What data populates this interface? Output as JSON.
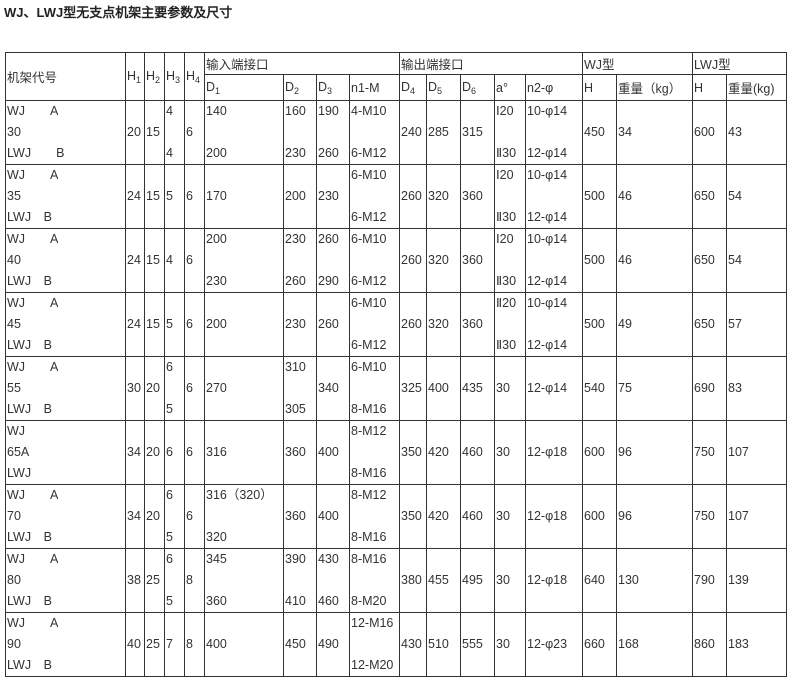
{
  "title": "WJ、LWJ型无支点机架主要参数及尺寸",
  "header": {
    "frame_code": "机架代号",
    "H1": "H",
    "H2": "H",
    "H3": "H",
    "H4": "H",
    "h_subs": [
      "1",
      "2",
      "3",
      "4"
    ],
    "input_group": "输入端接口",
    "output_group": "输出端接口",
    "wj_group": "WJ型",
    "lwj_group": "LWJ型",
    "sub_cols": [
      "D1",
      "D2",
      "D3",
      "n1-M",
      "D4",
      "D5",
      "D6",
      "a°",
      "n2-φ",
      "H",
      "重量（kg）",
      "H",
      "重量(kg)"
    ]
  },
  "rows": [
    [
      [
        "WJ　　A",
        "30",
        "LWJ　　B"
      ],
      [
        "",
        "20",
        ""
      ],
      [
        "",
        "15",
        ""
      ],
      [
        "4",
        "",
        "4"
      ],
      [
        "",
        "6",
        ""
      ],
      [
        "140",
        "",
        "200"
      ],
      [
        "160",
        "",
        "230"
      ],
      [
        "190",
        "",
        "260"
      ],
      [
        "4-M10",
        "",
        "6-M12"
      ],
      [
        "",
        "240",
        ""
      ],
      [
        "",
        "285",
        ""
      ],
      [
        "",
        "315",
        ""
      ],
      [
        "Ⅰ20",
        "",
        "Ⅱ30"
      ],
      [
        "10-φ14",
        "",
        "12-φ14"
      ],
      [
        "",
        "450",
        ""
      ],
      [
        "",
        "34",
        ""
      ],
      [
        "",
        "600",
        ""
      ],
      [
        "",
        "43",
        ""
      ]
    ],
    [
      [
        "WJ　　A",
        "35",
        "LWJ　B"
      ],
      [
        "",
        "24",
        ""
      ],
      [
        "",
        "15",
        ""
      ],
      [
        "",
        "5",
        ""
      ],
      [
        "",
        "6",
        ""
      ],
      [
        "",
        "170",
        ""
      ],
      [
        "",
        "200",
        ""
      ],
      [
        "",
        "230",
        ""
      ],
      [
        "6-M10",
        "",
        "6-M12"
      ],
      [
        "",
        "260",
        ""
      ],
      [
        "",
        "320",
        ""
      ],
      [
        "",
        "360",
        ""
      ],
      [
        "Ⅰ20",
        "",
        "Ⅱ30"
      ],
      [
        "10-φ14",
        "",
        "12-φ14"
      ],
      [
        "",
        "500",
        ""
      ],
      [
        "",
        "46",
        ""
      ],
      [
        "",
        "650",
        ""
      ],
      [
        "",
        "54",
        ""
      ]
    ],
    [
      [
        "WJ　　A",
        "40",
        "LWJ　B"
      ],
      [
        "",
        "24",
        ""
      ],
      [
        "",
        "15",
        ""
      ],
      [
        "",
        "4",
        ""
      ],
      [
        "",
        "6",
        ""
      ],
      [
        "200",
        "",
        "230"
      ],
      [
        "230",
        "",
        "260"
      ],
      [
        "260",
        "",
        "290"
      ],
      [
        "6-M10",
        "",
        "6-M12"
      ],
      [
        "",
        "260",
        ""
      ],
      [
        "",
        "320",
        ""
      ],
      [
        "",
        "360",
        ""
      ],
      [
        "Ⅰ20",
        "",
        "Ⅱ30"
      ],
      [
        "10-φ14",
        "",
        "12-φ14"
      ],
      [
        "",
        "500",
        ""
      ],
      [
        "",
        "46",
        ""
      ],
      [
        "",
        "650",
        ""
      ],
      [
        "",
        "54",
        ""
      ]
    ],
    [
      [
        "WJ　　A",
        "45",
        "LWJ　B"
      ],
      [
        "",
        "24",
        ""
      ],
      [
        "",
        "15",
        ""
      ],
      [
        "",
        "5",
        ""
      ],
      [
        "",
        "6",
        ""
      ],
      [
        "",
        "200",
        ""
      ],
      [
        "",
        "230",
        ""
      ],
      [
        "",
        "260",
        ""
      ],
      [
        "6-M10",
        "",
        "6-M12"
      ],
      [
        "",
        "260",
        ""
      ],
      [
        "",
        "320",
        ""
      ],
      [
        "",
        "360",
        ""
      ],
      [
        "Ⅱ20",
        "",
        "Ⅱ30"
      ],
      [
        "10-φ14",
        "",
        "12-φ14"
      ],
      [
        "",
        "500",
        ""
      ],
      [
        "",
        "49",
        ""
      ],
      [
        "",
        "650",
        ""
      ],
      [
        "",
        "57",
        ""
      ]
    ],
    [
      [
        "WJ　　A",
        "55",
        "LWJ　B"
      ],
      [
        "",
        "30",
        ""
      ],
      [
        "",
        "20",
        ""
      ],
      [
        "6",
        "",
        "5"
      ],
      [
        "",
        "6",
        ""
      ],
      [
        "",
        "270",
        ""
      ],
      [
        "310",
        "",
        "305"
      ],
      [
        "",
        "340",
        ""
      ],
      [
        "6-M10",
        "",
        "8-M16"
      ],
      [
        "",
        "325",
        ""
      ],
      [
        "",
        "400",
        ""
      ],
      [
        "",
        "435",
        ""
      ],
      [
        "",
        "30",
        ""
      ],
      [
        "",
        "12-φ14",
        ""
      ],
      [
        "",
        "540",
        ""
      ],
      [
        "",
        "75",
        ""
      ],
      [
        "",
        "690",
        ""
      ],
      [
        "",
        "83",
        ""
      ]
    ],
    [
      [
        "WJ",
        "65A",
        "LWJ"
      ],
      [
        "",
        "34",
        ""
      ],
      [
        "",
        "20",
        ""
      ],
      [
        "",
        "6",
        ""
      ],
      [
        "",
        "6",
        ""
      ],
      [
        "",
        "316",
        ""
      ],
      [
        "",
        "360",
        ""
      ],
      [
        "",
        "400",
        ""
      ],
      [
        "8-M12",
        "",
        "8-M16"
      ],
      [
        "",
        "350",
        ""
      ],
      [
        "",
        "420",
        ""
      ],
      [
        "",
        "460",
        ""
      ],
      [
        "",
        "30",
        ""
      ],
      [
        "",
        "12-φ18",
        ""
      ],
      [
        "",
        "600",
        ""
      ],
      [
        "",
        "96",
        ""
      ],
      [
        "",
        "750",
        ""
      ],
      [
        "",
        "107",
        ""
      ]
    ],
    [
      [
        "WJ　　A",
        "70",
        "LWJ　B"
      ],
      [
        "",
        "34",
        ""
      ],
      [
        "",
        "20",
        ""
      ],
      [
        "6",
        "",
        "5"
      ],
      [
        "",
        "6",
        ""
      ],
      [
        "316（320）",
        "",
        "320"
      ],
      [
        "",
        "360",
        ""
      ],
      [
        "",
        "400",
        ""
      ],
      [
        "8-M12",
        "",
        "8-M16"
      ],
      [
        "",
        "350",
        ""
      ],
      [
        "",
        "420",
        ""
      ],
      [
        "",
        "460",
        ""
      ],
      [
        "",
        "30",
        ""
      ],
      [
        "",
        "12-φ18",
        ""
      ],
      [
        "",
        "600",
        ""
      ],
      [
        "",
        "96",
        ""
      ],
      [
        "",
        "750",
        ""
      ],
      [
        "",
        "107",
        ""
      ]
    ],
    [
      [
        "WJ　　A",
        "80",
        "LWJ　B"
      ],
      [
        "",
        "38",
        ""
      ],
      [
        "",
        "25",
        ""
      ],
      [
        "6",
        "",
        "5"
      ],
      [
        "",
        "8",
        ""
      ],
      [
        "345",
        "",
        "360"
      ],
      [
        "390",
        "",
        "410"
      ],
      [
        "430",
        "",
        "460"
      ],
      [
        "8-M16",
        "",
        "8-M20"
      ],
      [
        "",
        "380",
        ""
      ],
      [
        "",
        "455",
        ""
      ],
      [
        "",
        "495",
        ""
      ],
      [
        "",
        "30",
        ""
      ],
      [
        "",
        "12-φ18",
        ""
      ],
      [
        "",
        "640",
        ""
      ],
      [
        "",
        "130",
        ""
      ],
      [
        "",
        "790",
        ""
      ],
      [
        "",
        "139",
        ""
      ]
    ],
    [
      [
        "WJ　　A",
        "90",
        "LWJ　B"
      ],
      [
        "",
        "40",
        ""
      ],
      [
        "",
        "25",
        ""
      ],
      [
        "",
        "7",
        ""
      ],
      [
        "",
        "8",
        ""
      ],
      [
        "",
        "400",
        ""
      ],
      [
        "",
        "450",
        ""
      ],
      [
        "",
        "490",
        ""
      ],
      [
        "12-M16",
        "",
        "12-M20"
      ],
      [
        "",
        "430",
        ""
      ],
      [
        "",
        "510",
        ""
      ],
      [
        "",
        "555",
        ""
      ],
      [
        "",
        "30",
        ""
      ],
      [
        "",
        "12-φ23",
        ""
      ],
      [
        "",
        "660",
        ""
      ],
      [
        "",
        "168",
        ""
      ],
      [
        "",
        "860",
        ""
      ],
      [
        "",
        "183",
        ""
      ]
    ]
  ]
}
